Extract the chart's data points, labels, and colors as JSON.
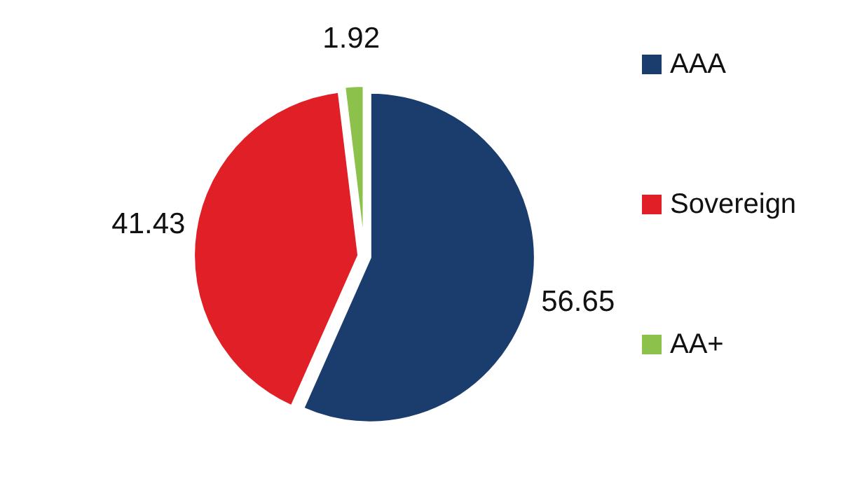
{
  "chart_data": {
    "type": "pie",
    "categories": [
      "AAA",
      "Sovereign",
      "AA+"
    ],
    "values": [
      56.65,
      41.43,
      1.92
    ],
    "colors": [
      "#1a3d6d",
      "#e01f26",
      "#8cc14c"
    ],
    "data_labels": true,
    "legend": "right"
  }
}
